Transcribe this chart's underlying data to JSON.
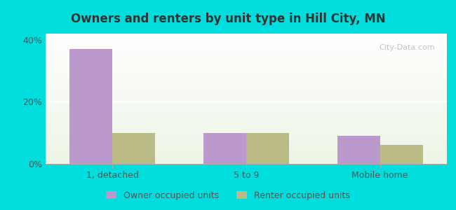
{
  "title": "Owners and renters by unit type in Hill City, MN",
  "categories": [
    "1, detached",
    "5 to 9",
    "Mobile home"
  ],
  "owner_values": [
    37.0,
    10.0,
    9.0
  ],
  "renter_values": [
    10.0,
    10.0,
    6.0
  ],
  "owner_color": "#bb99cc",
  "renter_color": "#bbbb88",
  "ylim": [
    0,
    42
  ],
  "yticks": [
    0,
    20,
    40
  ],
  "ytick_labels": [
    "0%",
    "20%",
    "40%"
  ],
  "background_outer": "#00dddd",
  "bar_width": 0.32,
  "legend_owner": "Owner occupied units",
  "legend_renter": "Renter occupied units",
  "watermark": "City-Data.com"
}
